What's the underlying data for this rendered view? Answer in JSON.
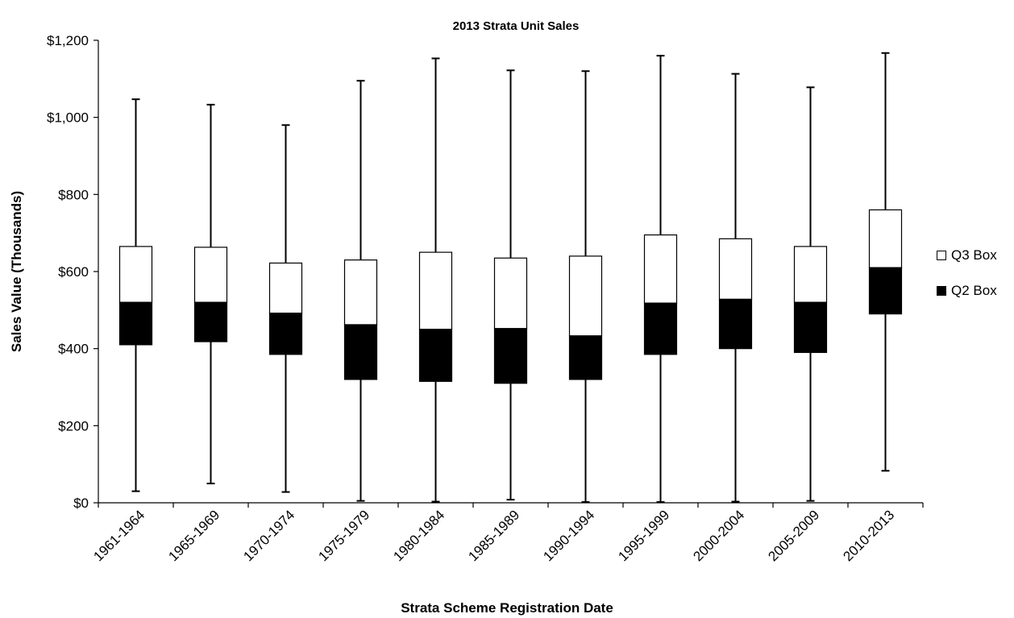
{
  "chart_data": {
    "type": "box",
    "title": "2013 Strata Unit Sales",
    "xlabel": "Strata Scheme Registration Date",
    "ylabel": "Sales Value (Thousands)",
    "ylim": [
      0,
      1200
    ],
    "yticks": [
      0,
      200,
      400,
      600,
      800,
      1000,
      1200
    ],
    "ytick_labels": [
      "$0",
      "$200",
      "$400",
      "$600",
      "$800",
      "$1,000",
      "$1,200"
    ],
    "grid": false,
    "legend_position": "right",
    "categories": [
      "1961-1964",
      "1965-1969",
      "1970-1974",
      "1975-1979",
      "1980-1984",
      "1985-1989",
      "1990-1994",
      "1995-1999",
      "2000-2004",
      "2005-2009",
      "2010-2013"
    ],
    "min": [
      30,
      50,
      28,
      5,
      3,
      8,
      2,
      2,
      3,
      5,
      83
    ],
    "q1": [
      410,
      418,
      385,
      320,
      315,
      310,
      320,
      385,
      400,
      390,
      490
    ],
    "median": [
      520,
      520,
      492,
      462,
      450,
      452,
      433,
      518,
      528,
      520,
      610
    ],
    "q3": [
      665,
      663,
      622,
      630,
      650,
      635,
      640,
      695,
      685,
      665,
      760
    ],
    "max": [
      1047,
      1033,
      980,
      1095,
      1153,
      1122,
      1120,
      1160,
      1113,
      1078,
      1167
    ],
    "series": [
      {
        "name": "Q3 Box",
        "color": "#ffffff"
      },
      {
        "name": "Q2 Box",
        "color": "#000000"
      }
    ]
  }
}
